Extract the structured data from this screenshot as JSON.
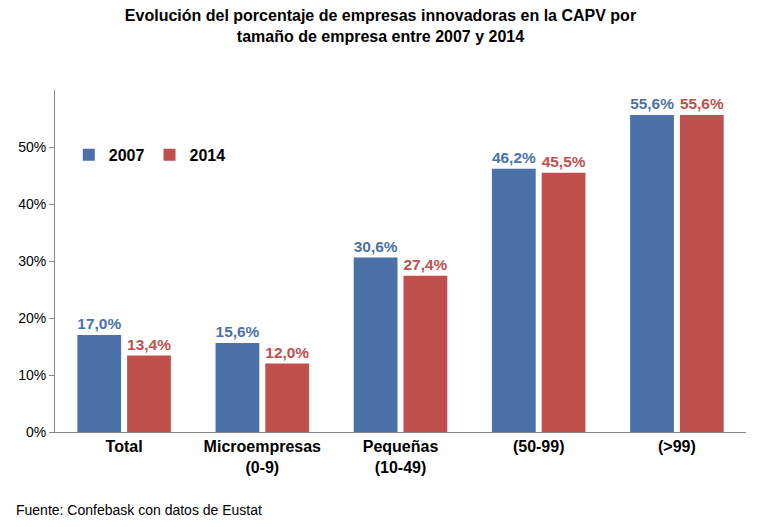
{
  "chart_data": {
    "type": "bar",
    "title": [
      "Evolución del porcentaje de empresas innovadoras en la CAPV por",
      "tamaño de empresa entre 2007 y 2014"
    ],
    "source": "Fuente: Confebask con datos de Eustat",
    "categories": [
      "Total",
      "Microempresas\n(0-9)",
      "Pequeñas\n(10-49)",
      "(50-99)",
      "(>99)"
    ],
    "series": [
      {
        "name": "2007",
        "color": "#4a72a8",
        "values": [
          17.0,
          15.6,
          30.6,
          46.2,
          55.6
        ],
        "value_labels": [
          "17,0%",
          "15,6%",
          "30,6%",
          "46,2%",
          "55,6%"
        ]
      },
      {
        "name": "2014",
        "color": "#c0504d",
        "values": [
          13.4,
          12.0,
          27.4,
          45.5,
          55.6
        ],
        "value_labels": [
          "13,4%",
          "12,0%",
          "27,4%",
          "45,5%",
          "55,6%"
        ]
      }
    ],
    "ylim": [
      0,
      60
    ],
    "yticks": [
      {
        "value": 0,
        "label": "0%"
      },
      {
        "value": 10,
        "label": "10%"
      },
      {
        "value": 20,
        "label": "20%"
      },
      {
        "value": 30,
        "label": "30%"
      },
      {
        "value": 40,
        "label": "40%"
      },
      {
        "value": 50,
        "label": "50%"
      }
    ],
    "grid": false,
    "legend": "upper left",
    "data_labels": true
  }
}
